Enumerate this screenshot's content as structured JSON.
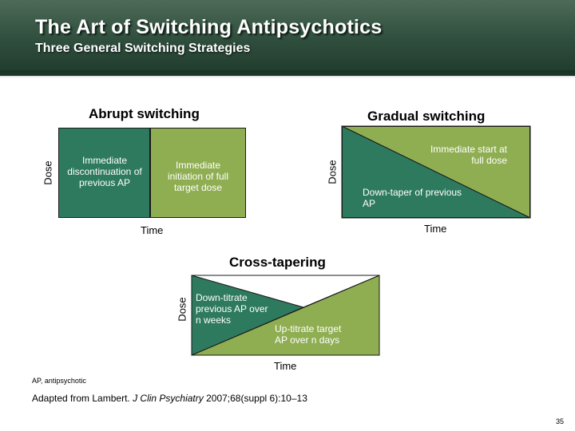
{
  "header": {
    "title": "The Art of Switching Antipsychotics",
    "subtitle": "Three General Switching Strategies"
  },
  "colors": {
    "dark_green": "#2e7a5f",
    "light_green": "#8fae52",
    "header_green": "#2f4d3c"
  },
  "abrupt": {
    "heading": "Abrupt switching",
    "y_axis": "Dose",
    "x_axis": "Time",
    "left_label": "Immediate discontinuation of previous AP",
    "right_label": "Immediate initiation of full target dose"
  },
  "gradual": {
    "heading": "Gradual switching",
    "y_axis": "Dose",
    "x_axis": "Time",
    "top_label": "Immediate start at full dose",
    "bottom_label": "Down-taper of previous AP"
  },
  "cross": {
    "heading": "Cross-tapering",
    "y_axis": "Dose",
    "x_axis": "Time",
    "down_label": "Down-titrate previous AP over n weeks",
    "up_label": "Up-titrate target AP over n days"
  },
  "footnote": "AP, antipsychotic",
  "source": {
    "prefix": "Adapted from Lambert. ",
    "journal": "J Clin Psychiatry",
    "suffix": " 2007;68(suppl 6):10–13"
  },
  "page_number": "35"
}
